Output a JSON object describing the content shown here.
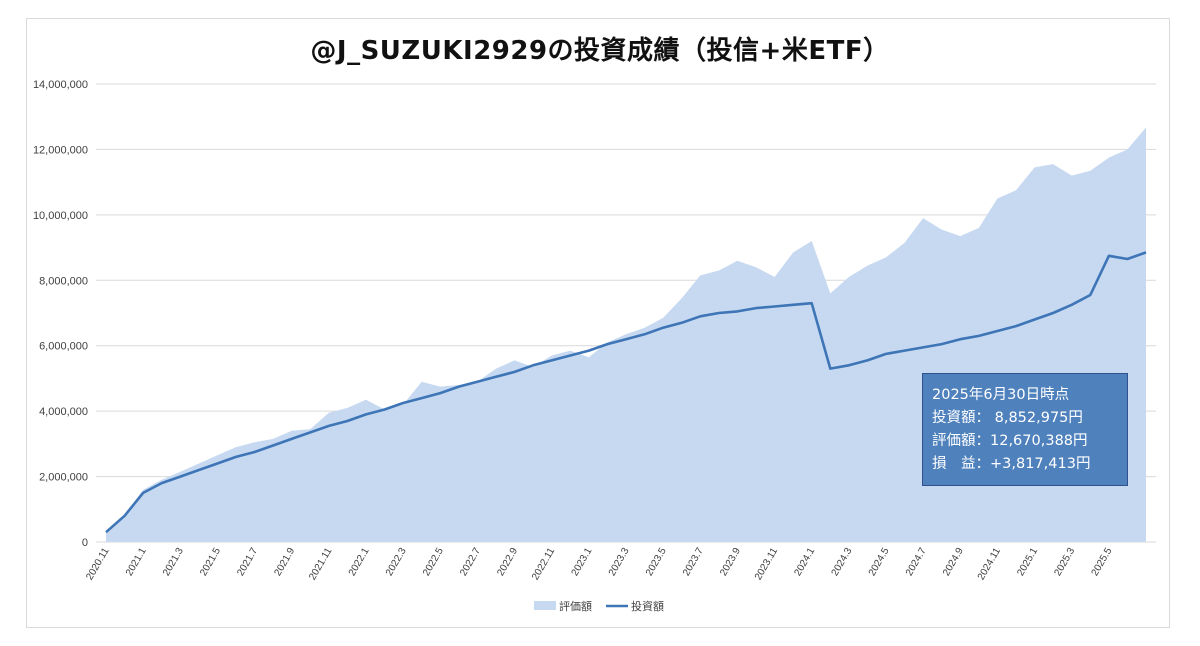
{
  "title": "@J_SUZUKI2929の投資成績（投信+米ETF）",
  "colors": {
    "area": "#c6d9f1",
    "line": "#3e75b6",
    "grid": "#d9d9d9",
    "infobox_bg": "#4f81bd"
  },
  "legend": {
    "area_label": "評価額",
    "line_label": "投資額"
  },
  "infobox": {
    "line1": "2025年6月30日時点",
    "line2": "投資額：  8,852,975円",
    "line3": "評価額：12,670,388円",
    "line4": "損　益：+3,817,413円"
  },
  "chart_data": {
    "type": "area",
    "title": "@J_SUZUKI2929の投資成績（投信+米ETF）",
    "ylim": [
      0,
      14000000
    ],
    "y_ticks": [
      "0",
      "2,000,000",
      "4,000,000",
      "6,000,000",
      "8,000,000",
      "10,000,000",
      "12,000,000",
      "14,000,000"
    ],
    "x_tick_labels": [
      "2020.11",
      "2021.1",
      "2021.3",
      "2021.5",
      "2021.7",
      "2021.9",
      "2021.11",
      "2022.1",
      "2022.3",
      "2022.5",
      "2022.7",
      "2022.9",
      "2022.11",
      "2023.1",
      "2023.3",
      "2023.5",
      "2023.7",
      "2023.9",
      "2023.11",
      "2024.1",
      "2024.3",
      "2024.5",
      "2024.7",
      "2024.9",
      "2024.11",
      "2025.1",
      "2025.3",
      "2025.5"
    ],
    "legend_position": "bottom",
    "grid": true,
    "series": [
      {
        "name": "評価額",
        "type": "area",
        "values": [
          300000,
          820000,
          1600000,
          1900000,
          2150000,
          2400000,
          2650000,
          2900000,
          3050000,
          3150000,
          3400000,
          3450000,
          3950000,
          4100000,
          4350000,
          4050000,
          4200000,
          4900000,
          4750000,
          4800000,
          4900000,
          5300000,
          5550000,
          5350000,
          5700000,
          5850000,
          5650000,
          6100000,
          6350000,
          6550000,
          6850000,
          7450000,
          8150000,
          8300000,
          8600000,
          8400000,
          8100000,
          8850000,
          9200000,
          7600000,
          8100000,
          8450000,
          8700000,
          9150000,
          9900000,
          9550000,
          9350000,
          9600000,
          10500000,
          10750000,
          11450000,
          11550000,
          11200000,
          11350000,
          11750000,
          12000000,
          12670388
        ]
      },
      {
        "name": "投資額",
        "type": "line",
        "values": [
          300000,
          800000,
          1500000,
          1800000,
          2000000,
          2200000,
          2400000,
          2600000,
          2750000,
          2950000,
          3150000,
          3350000,
          3550000,
          3700000,
          3900000,
          4050000,
          4250000,
          4400000,
          4550000,
          4750000,
          4900000,
          5050000,
          5200000,
          5400000,
          5550000,
          5700000,
          5850000,
          6050000,
          6200000,
          6350000,
          6550000,
          6700000,
          6900000,
          7000000,
          7050000,
          7150000,
          7200000,
          7250000,
          7300000,
          5300000,
          5400000,
          5550000,
          5750000,
          5850000,
          5950000,
          6050000,
          6200000,
          6300000,
          6450000,
          6600000,
          6800000,
          7000000,
          7250000,
          7550000,
          8750000,
          8650000,
          8852975
        ]
      }
    ]
  }
}
